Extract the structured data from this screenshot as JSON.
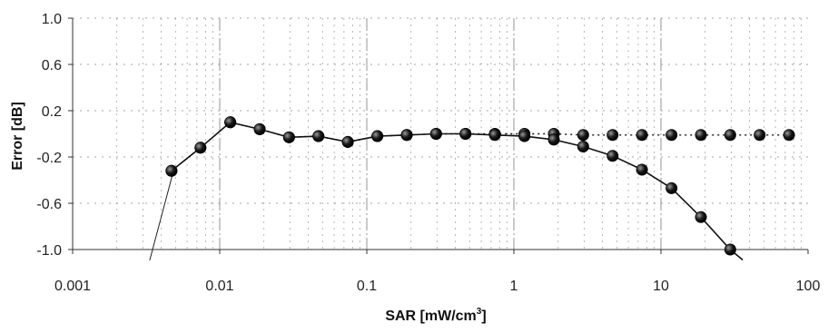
{
  "chart_data": {
    "type": "scatter",
    "xlabel": "SAR [mW/cm",
    "xlabel_sup": "3",
    "xlabel_end": "]",
    "ylabel": "Error [dB]",
    "xscale": "log",
    "xlim": [
      0.001,
      100
    ],
    "ylim": [
      -1.0,
      1.0
    ],
    "x_ticks": [
      0.001,
      0.01,
      0.1,
      1,
      10,
      100
    ],
    "x_tick_labels": [
      "0.001",
      "0.01",
      "0.1",
      "1",
      "10",
      "100"
    ],
    "y_ticks": [
      1.0,
      0.6,
      0.2,
      -0.2,
      -0.6,
      -1.0
    ],
    "y_tick_labels": [
      "1.0",
      "0.6",
      "0.2",
      "-0.2",
      "-0.6",
      "-1.0"
    ],
    "grid": "dashed vertical and horizontal",
    "legend": "none",
    "series": [
      {
        "style": "dotted line with filled circle markers",
        "x": [
          0.0047,
          0.0074,
          0.0118,
          0.0187,
          0.0296,
          0.0469,
          0.0743,
          0.118,
          0.187,
          0.296,
          0.469,
          0.743,
          1.18,
          1.87,
          2.96,
          4.69,
          7.43,
          11.8,
          18.7,
          29.6,
          46.9,
          74.3
        ],
        "y": [
          -0.32,
          -0.12,
          0.1,
          0.04,
          -0.03,
          -0.02,
          -0.07,
          -0.02,
          -0.01,
          0.0,
          0.0,
          0.0,
          0.0,
          0.0,
          -0.01,
          -0.01,
          -0.01,
          -0.01,
          -0.01,
          -0.01,
          -0.01,
          -0.01
        ]
      },
      {
        "style": "solid line with filled circle markers",
        "x": [
          0.0047,
          0.0074,
          0.0118,
          0.0187,
          0.0296,
          0.0469,
          0.0743,
          0.118,
          0.187,
          0.296,
          0.469,
          0.743,
          1.18,
          1.87,
          2.96,
          4.69,
          7.43,
          11.8,
          18.7,
          29.6,
          36.0
        ],
        "y": [
          -0.32,
          -0.12,
          0.1,
          0.04,
          -0.03,
          -0.02,
          -0.07,
          -0.02,
          -0.01,
          0.0,
          0.0,
          -0.01,
          -0.02,
          -0.05,
          -0.11,
          -0.19,
          -0.31,
          -0.47,
          -0.72,
          -1.0,
          -1.09
        ],
        "marker_count": 20
      },
      {
        "style": "thin line descending below the axis at the low end",
        "x": [
          0.0033,
          0.0048
        ],
        "y": [
          -1.12,
          -0.34
        ]
      }
    ],
    "colors": {
      "line": "#111111",
      "marker": "#1a1a1a",
      "grid": "#888888"
    }
  }
}
